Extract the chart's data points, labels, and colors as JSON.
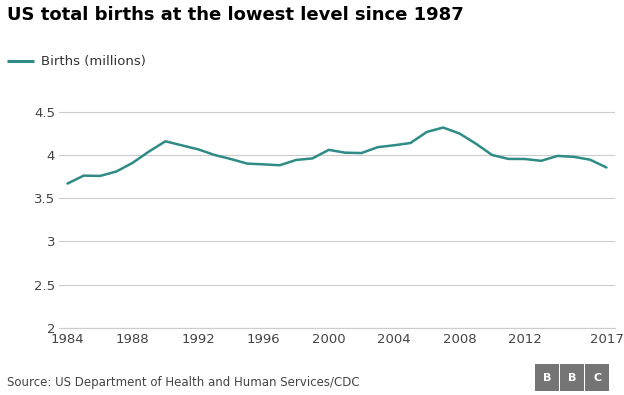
{
  "title": "US total births at the lowest level since 1987",
  "legend_label": "Births (millions)",
  "source_text": "Source: US Department of Health and Human Services/CDC",
  "line_color": "#2e8b85",
  "background_color": "#ffffff",
  "grid_color": "#cccccc",
  "years": [
    1984,
    1985,
    1986,
    1987,
    1988,
    1989,
    1990,
    1991,
    1992,
    1993,
    1994,
    1995,
    1996,
    1997,
    1998,
    1999,
    2000,
    2001,
    2002,
    2003,
    2004,
    2005,
    2006,
    2007,
    2008,
    2009,
    2010,
    2011,
    2012,
    2013,
    2014,
    2015,
    2016,
    2017
  ],
  "births": [
    3.669,
    3.761,
    3.757,
    3.809,
    3.91,
    4.041,
    4.158,
    4.111,
    4.065,
    4.0,
    3.953,
    3.9,
    3.891,
    3.881,
    3.942,
    3.96,
    4.059,
    4.026,
    4.022,
    4.09,
    4.112,
    4.138,
    4.266,
    4.317,
    4.248,
    4.131,
    3.999,
    3.954,
    3.953,
    3.932,
    3.989,
    3.978,
    3.945,
    3.855
  ],
  "xlim": [
    1983.5,
    2017.5
  ],
  "ylim": [
    2.0,
    4.65
  ],
  "yticks": [
    2.0,
    2.5,
    3.0,
    3.5,
    4.0,
    4.5
  ],
  "xticks": [
    1984,
    1988,
    1992,
    1996,
    2000,
    2004,
    2008,
    2012,
    2017
  ],
  "title_fontsize": 13,
  "legend_fontsize": 9.5,
  "tick_fontsize": 9.5,
  "source_fontsize": 8.5,
  "line_width": 1.8,
  "bbc_color": "#757575"
}
